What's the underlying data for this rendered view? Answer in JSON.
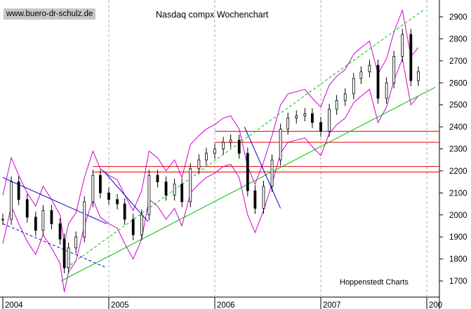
{
  "chart_data": {
    "type": "candlestick",
    "title": "Nasdaq compx Wochenchart",
    "watermark": "www.buero-dr-schulz.de",
    "source": "Hoppenstedt Charts",
    "xlabel": "",
    "ylabel": "",
    "ylim": [
      1650,
      2960
    ],
    "y_ticks": [
      1700,
      1800,
      1900,
      2000,
      2100,
      2200,
      2300,
      2400,
      2500,
      2600,
      2700,
      2800,
      2900
    ],
    "x_year_labels": [
      "2004",
      "2005",
      "2006",
      "2007",
      "200"
    ],
    "grid": "vertical dashed at year starts",
    "y_axis_side": "right",
    "series": [
      {
        "kind": "close",
        "x": [
          2004.0,
          2004.08,
          2004.15,
          2004.23,
          2004.31,
          2004.38,
          2004.46,
          2004.54,
          2004.58,
          2004.62,
          2004.69,
          2004.77,
          2004.85,
          2004.92,
          2005.0,
          2005.08,
          2005.15,
          2005.23,
          2005.31,
          2005.38,
          2005.46,
          2005.54,
          2005.62,
          2005.69,
          2005.77,
          2005.85,
          2005.92,
          2006.0,
          2006.08,
          2006.15,
          2006.23,
          2006.31,
          2006.38,
          2006.46,
          2006.54,
          2006.62,
          2006.69,
          2006.77,
          2006.85,
          2006.92,
          2007.0,
          2007.08,
          2007.15,
          2007.23,
          2007.31,
          2007.38,
          2007.46,
          2007.54,
          2007.62,
          2007.69,
          2007.77,
          2007.85,
          2007.92
        ],
        "values": [
          1980,
          2150,
          2070,
          1990,
          1930,
          2020,
          1960,
          1890,
          1760,
          1850,
          1900,
          2060,
          2180,
          2100,
          2070,
          2050,
          1980,
          1910,
          2000,
          2180,
          2150,
          2090,
          2140,
          2060,
          2210,
          2250,
          2280,
          2300,
          2330,
          2340,
          2280,
          2110,
          2030,
          2130,
          2250,
          2390,
          2440,
          2450,
          2460,
          2420,
          2380,
          2480,
          2520,
          2550,
          2620,
          2650,
          2680,
          2530,
          2600,
          2720,
          2820,
          2610,
          2650
        ]
      }
    ],
    "annotation_lines": {
      "horizontal_levels": [
        2380,
        2330,
        2220,
        2195
      ],
      "description": "red horizontal resistance lines, blue downtrend lines, green uptrend channel, magenta Bollinger bands"
    }
  }
}
